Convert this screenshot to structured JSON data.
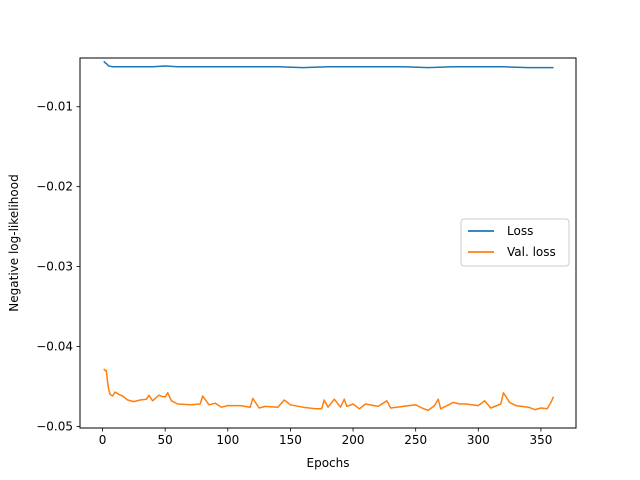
{
  "chart_data": {
    "type": "line",
    "title": "",
    "xlabel": "Epochs",
    "ylabel": "Negative log-likelihood",
    "xlim": [
      -18,
      378
    ],
    "ylim": [
      -0.0502,
      -0.0039
    ],
    "xticks": [
      0,
      50,
      100,
      150,
      200,
      250,
      300,
      350
    ],
    "xtick_labels": [
      "0",
      "50",
      "100",
      "150",
      "200",
      "250",
      "300",
      "350"
    ],
    "yticks": [
      -0.05,
      -0.04,
      -0.03,
      -0.02,
      -0.01
    ],
    "ytick_labels": [
      "−0.05",
      "−0.04",
      "−0.03",
      "−0.02",
      "−0.01"
    ],
    "grid": false,
    "legend": {
      "placement": "center-right"
    },
    "series": [
      {
        "name": "Loss",
        "color": "#1f77b4",
        "x": [
          1,
          2,
          3,
          5,
          8,
          12,
          20,
          30,
          40,
          50,
          60,
          80,
          100,
          120,
          140,
          160,
          180,
          200,
          220,
          240,
          260,
          280,
          300,
          320,
          340,
          360
        ],
        "y": [
          -0.0043,
          -0.0045,
          -0.0046,
          -0.0049,
          -0.005,
          -0.005,
          -0.005,
          -0.005,
          -0.005,
          -0.0049,
          -0.005,
          -0.005,
          -0.005,
          -0.005,
          -0.005,
          -0.0051,
          -0.005,
          -0.005,
          -0.005,
          -0.005,
          -0.0051,
          -0.005,
          -0.005,
          -0.005,
          -0.0051,
          -0.0051
        ]
      },
      {
        "name": "Val. loss",
        "color": "#ff7f0e",
        "x": [
          1,
          2,
          3,
          4,
          5,
          6,
          8,
          10,
          13,
          16,
          20,
          25,
          30,
          35,
          37,
          40,
          45,
          48,
          50,
          52,
          55,
          60,
          70,
          78,
          80,
          85,
          90,
          95,
          100,
          110,
          118,
          120,
          125,
          130,
          140,
          145,
          150,
          160,
          170,
          175,
          177,
          180,
          185,
          190,
          193,
          195,
          200,
          205,
          210,
          220,
          227,
          230,
          240,
          250,
          255,
          260,
          265,
          268,
          270,
          280,
          285,
          290,
          300,
          305,
          310,
          318,
          320,
          325,
          330,
          340,
          345,
          350,
          355,
          358,
          360
        ],
        "y": [
          -0.0428,
          -0.043,
          -0.043,
          -0.0445,
          -0.0454,
          -0.046,
          -0.0462,
          -0.0457,
          -0.046,
          -0.0462,
          -0.0467,
          -0.0469,
          -0.0467,
          -0.0466,
          -0.0461,
          -0.0468,
          -0.0461,
          -0.0463,
          -0.0463,
          -0.0458,
          -0.0468,
          -0.0472,
          -0.0473,
          -0.0472,
          -0.0462,
          -0.0473,
          -0.0471,
          -0.0476,
          -0.0474,
          -0.0474,
          -0.0476,
          -0.0465,
          -0.0477,
          -0.0475,
          -0.0476,
          -0.0467,
          -0.0473,
          -0.0476,
          -0.0478,
          -0.0478,
          -0.0467,
          -0.0476,
          -0.0466,
          -0.0476,
          -0.0466,
          -0.0475,
          -0.0472,
          -0.0478,
          -0.0472,
          -0.0475,
          -0.0468,
          -0.0477,
          -0.0475,
          -0.0473,
          -0.0477,
          -0.048,
          -0.0474,
          -0.0466,
          -0.0478,
          -0.047,
          -0.0472,
          -0.0472,
          -0.0474,
          -0.0468,
          -0.0477,
          -0.0472,
          -0.0458,
          -0.047,
          -0.0474,
          -0.0476,
          -0.0479,
          -0.0477,
          -0.0478,
          -0.047,
          -0.0463
        ]
      }
    ]
  }
}
